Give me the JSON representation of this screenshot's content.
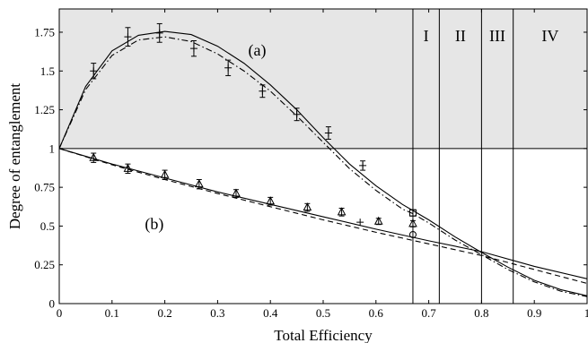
{
  "chart_data": {
    "type": "line",
    "xlabel": "Total Efficiency",
    "ylabel": "Degree of entanglement",
    "xlim": [
      0,
      1
    ],
    "ylim": [
      0,
      1.9
    ],
    "x_ticks": [
      0,
      0.1,
      0.2,
      0.3,
      0.4,
      0.5,
      0.6,
      0.7,
      0.8,
      0.9,
      1
    ],
    "x_tick_labels": [
      "0",
      "0.1",
      "0.2",
      "0.3",
      "0.4",
      "0.5",
      "0.6",
      "0.7",
      "0.8",
      "0.9",
      "1"
    ],
    "y_ticks": [
      0,
      0.25,
      0.5,
      0.75,
      1,
      1.25,
      1.5,
      1.75
    ],
    "y_tick_labels": [
      "0",
      "0.25",
      "0.5",
      "0.75",
      "1",
      "1.25",
      "1.5",
      "1.75"
    ],
    "grid": false,
    "legend": "none",
    "shaded_region": {
      "ymin": 1,
      "ymax": 1.9,
      "color": "#e6e6e6"
    },
    "reference_line_y": 1,
    "vertical_lines_x": [
      0.67,
      0.72,
      0.8,
      0.86
    ],
    "region_labels": [
      {
        "label": "I",
        "x": 0.695
      },
      {
        "label": "II",
        "x": 0.76
      },
      {
        "label": "III",
        "x": 0.83
      },
      {
        "label": "IV",
        "x": 0.93
      }
    ],
    "annotations": [
      {
        "text": "(a)",
        "x": 0.375,
        "y": 1.6
      },
      {
        "text": "(b)",
        "x": 0.18,
        "y": 0.48
      }
    ],
    "series": [
      {
        "style": "solid",
        "x": [
          0,
          0.05,
          0.1,
          0.15,
          0.2,
          0.25,
          0.3,
          0.35,
          0.4,
          0.45,
          0.5,
          0.55,
          0.6,
          0.65,
          0.67,
          0.7,
          0.75,
          0.8,
          0.85,
          0.9,
          0.95,
          1.0
        ],
        "y": [
          1.0,
          1.4,
          1.63,
          1.73,
          1.755,
          1.735,
          1.66,
          1.55,
          1.41,
          1.25,
          1.07,
          0.9,
          0.76,
          0.64,
          0.6,
          0.54,
          0.43,
          0.33,
          0.235,
          0.15,
          0.09,
          0.05
        ]
      },
      {
        "style": "dashdot",
        "x": [
          0,
          0.05,
          0.1,
          0.15,
          0.2,
          0.25,
          0.3,
          0.35,
          0.4,
          0.45,
          0.5,
          0.55,
          0.6,
          0.65,
          0.67,
          0.7,
          0.75,
          0.8,
          0.85,
          0.9,
          0.95,
          1.0
        ],
        "y": [
          1.0,
          1.38,
          1.6,
          1.7,
          1.72,
          1.69,
          1.61,
          1.5,
          1.37,
          1.21,
          1.04,
          0.87,
          0.73,
          0.61,
          0.58,
          0.52,
          0.41,
          0.315,
          0.22,
          0.14,
          0.08,
          0.045
        ]
      },
      {
        "style": "solid",
        "x": [
          0,
          0.1,
          0.2,
          0.3,
          0.4,
          0.5,
          0.6,
          0.7,
          0.8,
          0.9,
          1.0
        ],
        "y": [
          1.0,
          0.9,
          0.81,
          0.72,
          0.64,
          0.56,
          0.48,
          0.405,
          0.335,
          0.24,
          0.16
        ]
      },
      {
        "style": "dashed",
        "x": [
          0,
          0.1,
          0.2,
          0.3,
          0.4,
          0.5,
          0.6,
          0.7,
          0.8,
          0.9,
          1.0
        ],
        "y": [
          1.0,
          0.895,
          0.8,
          0.71,
          0.625,
          0.54,
          0.46,
          0.385,
          0.31,
          0.22,
          0.13
        ]
      }
    ],
    "markers": [
      {
        "symbol": "plus",
        "x": [
          0.065,
          0.13,
          0.19,
          0.255,
          0.32,
          0.385,
          0.45,
          0.51,
          0.575
        ],
        "y": [
          1.5,
          1.72,
          1.745,
          1.645,
          1.52,
          1.37,
          1.22,
          1.1,
          0.89
        ],
        "err": [
          0.05,
          0.06,
          0.06,
          0.05,
          0.05,
          0.04,
          0.04,
          0.04,
          0.03
        ]
      },
      {
        "symbol": "triangle",
        "x": [
          0.065,
          0.13,
          0.2,
          0.265,
          0.335,
          0.4,
          0.47,
          0.535,
          0.605,
          0.67
        ],
        "y": [
          0.94,
          0.87,
          0.83,
          0.77,
          0.71,
          0.66,
          0.62,
          0.59,
          0.53,
          0.515
        ],
        "err": [
          0.03,
          0.03,
          0.03,
          0.03,
          0.025,
          0.025,
          0.025,
          0.025,
          0.02,
          0.02
        ]
      },
      {
        "symbol": "circle",
        "x": [
          0.67
        ],
        "y": [
          0.445
        ],
        "err": [
          0
        ]
      },
      {
        "symbol": "square",
        "x": [
          0.67
        ],
        "y": [
          0.585
        ],
        "err": [
          0.02
        ]
      },
      {
        "symbol": "plus",
        "x": [
          0.57
        ],
        "y": [
          0.525
        ],
        "err": [
          0
        ]
      }
    ]
  }
}
